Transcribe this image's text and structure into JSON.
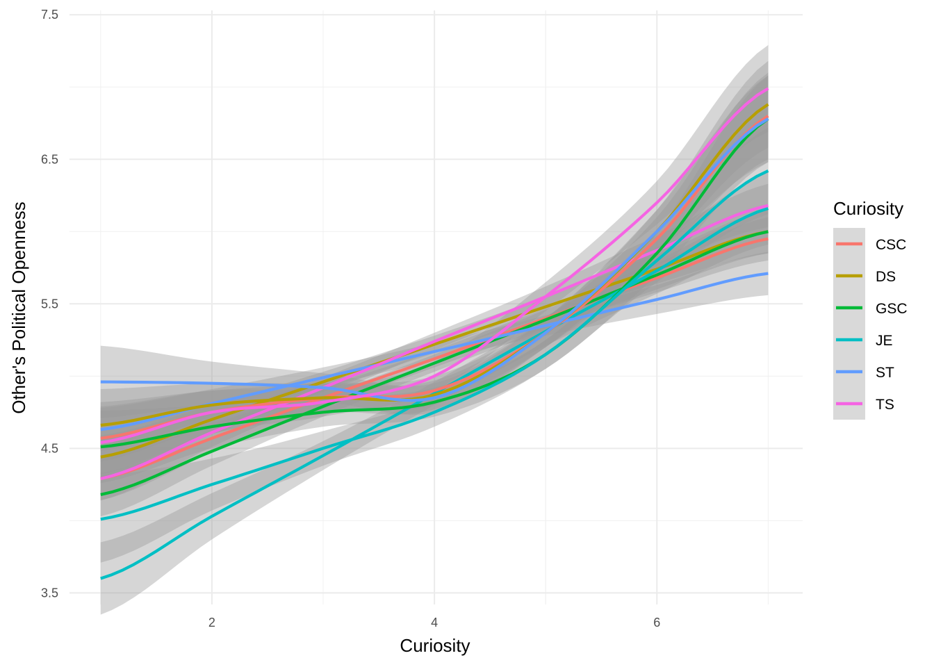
{
  "chart_data": {
    "type": "line",
    "title": "",
    "xlabel": "Curiosity",
    "ylabel": "Other's Political Openness",
    "xlim": [
      0.72,
      7.31
    ],
    "ylim": [
      3.42,
      7.53
    ],
    "x_ticks": [
      2,
      4,
      6
    ],
    "x_tick_labels": [
      "2",
      "4",
      "6"
    ],
    "y_ticks": [
      3.5,
      4.5,
      5.5,
      6.5,
      7.5
    ],
    "y_tick_labels": [
      "3.5",
      "4.5",
      "5.5",
      "6.5",
      "7.5"
    ],
    "grid": true,
    "legend": {
      "title": "Curiosity",
      "position": "right"
    },
    "x": [
      1,
      2,
      3,
      4,
      5,
      6,
      7
    ],
    "groups": [
      {
        "name": "CSC",
        "color": "#F8766D"
      },
      {
        "name": "DS",
        "color": "#B79F00"
      },
      {
        "name": "GSC",
        "color": "#00BA38"
      },
      {
        "name": "JE",
        "color": "#00BFC4"
      },
      {
        "name": "ST",
        "color": "#619CFF"
      },
      {
        "name": "TS",
        "color": "#F564E3"
      }
    ],
    "series": [
      {
        "name": "CSC",
        "fit": "linear",
        "values": [
          4.29,
          4.57,
          4.85,
          5.12,
          5.4,
          5.68,
          5.95
        ],
        "se": [
          0.15,
          0.1,
          0.07,
          0.06,
          0.07,
          0.1,
          0.15
        ]
      },
      {
        "name": "DS",
        "fit": "linear",
        "values": [
          4.44,
          4.7,
          4.96,
          5.22,
          5.48,
          5.74,
          6.0
        ],
        "se": [
          0.15,
          0.1,
          0.07,
          0.06,
          0.07,
          0.1,
          0.15
        ]
      },
      {
        "name": "GSC",
        "fit": "linear",
        "values": [
          4.18,
          4.48,
          4.79,
          5.09,
          5.39,
          5.7,
          6.0
        ],
        "se": [
          0.15,
          0.1,
          0.07,
          0.06,
          0.07,
          0.1,
          0.15
        ]
      },
      {
        "name": "JE",
        "fit": "linear",
        "values": [
          3.6,
          4.03,
          4.45,
          4.88,
          5.31,
          5.73,
          6.16
        ],
        "se": [
          0.25,
          0.16,
          0.1,
          0.08,
          0.1,
          0.16,
          0.25
        ]
      },
      {
        "name": "ST",
        "fit": "linear",
        "values": [
          4.63,
          4.81,
          4.99,
          5.17,
          5.35,
          5.53,
          5.71
        ],
        "se": [
          0.15,
          0.1,
          0.07,
          0.06,
          0.07,
          0.1,
          0.15
        ]
      },
      {
        "name": "TS",
        "fit": "linear",
        "values": [
          4.29,
          4.61,
          4.92,
          5.24,
          5.55,
          5.87,
          6.18
        ],
        "se": [
          0.15,
          0.1,
          0.07,
          0.06,
          0.07,
          0.1,
          0.15
        ]
      },
      {
        "name": "CSC",
        "fit": "loess",
        "values": [
          4.57,
          4.75,
          4.85,
          4.9,
          5.3,
          5.95,
          6.8
        ],
        "se": [
          0.25,
          0.15,
          0.1,
          0.1,
          0.1,
          0.15,
          0.3
        ]
      },
      {
        "name": "DS",
        "fit": "loess",
        "values": [
          4.66,
          4.8,
          4.85,
          4.87,
          5.3,
          6.0,
          6.88
        ],
        "se": [
          0.25,
          0.15,
          0.1,
          0.1,
          0.1,
          0.15,
          0.3
        ]
      },
      {
        "name": "GSC",
        "fit": "loess",
        "values": [
          4.51,
          4.65,
          4.75,
          4.82,
          5.15,
          5.85,
          6.78
        ],
        "se": [
          0.25,
          0.15,
          0.1,
          0.1,
          0.1,
          0.15,
          0.3
        ]
      },
      {
        "name": "JE",
        "fit": "loess",
        "values": [
          4.01,
          4.25,
          4.5,
          4.75,
          5.15,
          5.8,
          6.42
        ],
        "se": [
          0.3,
          0.18,
          0.12,
          0.1,
          0.1,
          0.15,
          0.3
        ]
      },
      {
        "name": "ST",
        "fit": "loess",
        "values": [
          4.96,
          4.95,
          4.92,
          4.85,
          5.3,
          6.0,
          6.78
        ],
        "se": [
          0.25,
          0.15,
          0.1,
          0.1,
          0.1,
          0.15,
          0.3
        ]
      },
      {
        "name": "TS",
        "fit": "loess",
        "values": [
          4.54,
          4.75,
          4.82,
          5.0,
          5.55,
          6.2,
          6.99
        ],
        "se": [
          0.25,
          0.15,
          0.1,
          0.1,
          0.1,
          0.15,
          0.3
        ]
      }
    ]
  }
}
